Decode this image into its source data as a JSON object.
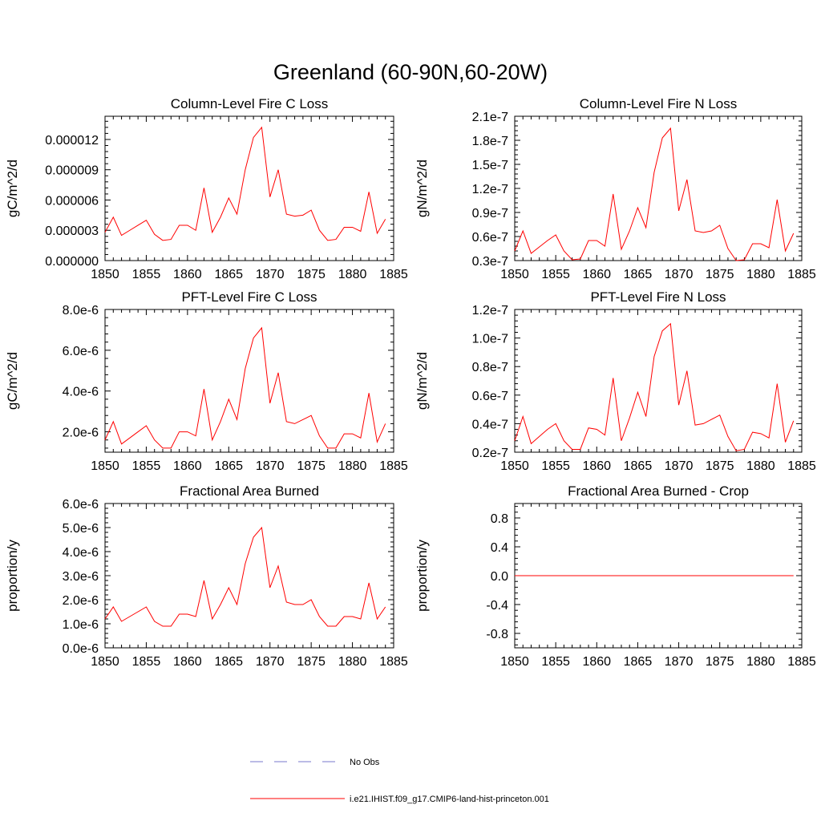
{
  "figure": {
    "title": "Greenland (60-90N,60-20W)",
    "series_color": "#ff0000",
    "obs_color": "#7777cc",
    "legend": [
      {
        "label": "No Obs",
        "style": "dashed"
      },
      {
        "label": "i.e21.IHIST.f09_g17.CMIP6-land-hist-princeton.001",
        "style": "solid"
      }
    ]
  },
  "chart_data": [
    {
      "type": "line",
      "title": "Column-Level Fire C Loss",
      "ylabel": "gC/m^2/d",
      "xlim": [
        1850,
        1885
      ],
      "ylim": [
        0,
        1.43e-05
      ],
      "xticks": [
        1850,
        1855,
        1860,
        1865,
        1870,
        1875,
        1880,
        1885
      ],
      "xtick_labels": [
        "1850",
        "1855",
        "1860",
        "1865",
        "1870",
        "1875",
        "1880",
        "1885"
      ],
      "yticks": [
        0,
        3e-06,
        6e-06,
        9e-06,
        1.2e-05
      ],
      "ytick_labels": [
        "0.000000",
        "0.000003",
        "0.000006",
        "0.000009",
        "0.000012"
      ],
      "x": [
        1850,
        1851,
        1852,
        1853,
        1854,
        1855,
        1856,
        1857,
        1858,
        1859,
        1860,
        1861,
        1862,
        1863,
        1864,
        1865,
        1866,
        1867,
        1868,
        1869,
        1870,
        1871,
        1872,
        1873,
        1874,
        1875,
        1876,
        1877,
        1878,
        1879,
        1880,
        1881,
        1882,
        1883,
        1884
      ],
      "series": [
        {
          "values": [
            2.8e-06,
            4.3e-06,
            2.5e-06,
            3e-06,
            3.5e-06,
            4e-06,
            2.6e-06,
            2e-06,
            2.1e-06,
            3.5e-06,
            3.5e-06,
            3e-06,
            7.2e-06,
            2.8e-06,
            4.3e-06,
            6.2e-06,
            4.6e-06,
            9e-06,
            1.22e-05,
            1.32e-05,
            6.3e-06,
            9e-06,
            4.6e-06,
            4.4e-06,
            4.5e-06,
            5e-06,
            3e-06,
            2e-06,
            2.1e-06,
            3.3e-06,
            3.3e-06,
            2.9e-06,
            6.8e-06,
            2.7e-06,
            4.1e-06
          ]
        }
      ]
    },
    {
      "type": "line",
      "title": "Column-Level Fire N Loss",
      "ylabel": "gN/m^2/d",
      "xlim": [
        1850,
        1885
      ],
      "ylim": [
        3e-08,
        2.1e-07
      ],
      "xticks": [
        1850,
        1855,
        1860,
        1865,
        1870,
        1875,
        1880,
        1885
      ],
      "xtick_labels": [
        "1850",
        "1855",
        "1860",
        "1865",
        "1870",
        "1875",
        "1880",
        "1885"
      ],
      "yticks": [
        3e-08,
        6e-08,
        9e-08,
        1.2e-07,
        1.5e-07,
        1.8e-07,
        2.1e-07
      ],
      "ytick_labels": [
        "0.3e-7",
        "0.6e-7",
        "0.9e-7",
        "1.2e-7",
        "1.5e-7",
        "1.8e-7",
        "2.1e-7"
      ],
      "x": [
        1850,
        1851,
        1852,
        1853,
        1854,
        1855,
        1856,
        1857,
        1858,
        1859,
        1860,
        1861,
        1862,
        1863,
        1864,
        1865,
        1866,
        1867,
        1868,
        1869,
        1870,
        1871,
        1872,
        1873,
        1874,
        1875,
        1876,
        1877,
        1878,
        1879,
        1880,
        1881,
        1882,
        1883,
        1884
      ],
      "series": [
        {
          "values": [
            4.2e-08,
            6.7e-08,
            3.9e-08,
            4.7e-08,
            5.5e-08,
            6.2e-08,
            4.2e-08,
            3.1e-08,
            3.2e-08,
            5.5e-08,
            5.5e-08,
            4.8e-08,
            1.13e-07,
            4.4e-08,
            6.7e-08,
            9.6e-08,
            7.1e-08,
            1.4e-07,
            1.83e-07,
            1.95e-07,
            9.2e-08,
            1.31e-07,
            6.7e-08,
            6.5e-08,
            6.7e-08,
            7.4e-08,
            4.5e-08,
            3e-08,
            3.1e-08,
            5.1e-08,
            5.1e-08,
            4.6e-08,
            1.06e-07,
            4.2e-08,
            6.4e-08
          ]
        }
      ]
    },
    {
      "type": "line",
      "title": "PFT-Level Fire C Loss",
      "ylabel": "gC/m^2/d",
      "xlim": [
        1850,
        1885
      ],
      "ylim": [
        1e-06,
        8e-06
      ],
      "xticks": [
        1850,
        1855,
        1860,
        1865,
        1870,
        1875,
        1880,
        1885
      ],
      "xtick_labels": [
        "1850",
        "1855",
        "1860",
        "1865",
        "1870",
        "1875",
        "1880",
        "1885"
      ],
      "yticks": [
        2e-06,
        4e-06,
        6e-06,
        8e-06
      ],
      "ytick_labels": [
        "2.0e-6",
        "4.0e-6",
        "6.0e-6",
        "8.0e-6"
      ],
      "x": [
        1850,
        1851,
        1852,
        1853,
        1854,
        1855,
        1856,
        1857,
        1858,
        1859,
        1860,
        1861,
        1862,
        1863,
        1864,
        1865,
        1866,
        1867,
        1868,
        1869,
        1870,
        1871,
        1872,
        1873,
        1874,
        1875,
        1876,
        1877,
        1878,
        1879,
        1880,
        1881,
        1882,
        1883,
        1884
      ],
      "series": [
        {
          "values": [
            1.6e-06,
            2.5e-06,
            1.4e-06,
            1.7e-06,
            2e-06,
            2.3e-06,
            1.6e-06,
            1.2e-06,
            1.2e-06,
            2e-06,
            2e-06,
            1.8e-06,
            4.1e-06,
            1.6e-06,
            2.5e-06,
            3.6e-06,
            2.6e-06,
            5.1e-06,
            6.6e-06,
            7.1e-06,
            3.4e-06,
            4.9e-06,
            2.5e-06,
            2.4e-06,
            2.6e-06,
            2.8e-06,
            1.8e-06,
            1.2e-06,
            1.2e-06,
            1.9e-06,
            1.9e-06,
            1.7e-06,
            3.9e-06,
            1.5e-06,
            2.4e-06
          ]
        }
      ]
    },
    {
      "type": "line",
      "title": "PFT-Level Fire N Loss",
      "ylabel": "gN/m^2/d",
      "xlim": [
        1850,
        1885
      ],
      "ylim": [
        2e-08,
        1.2e-07
      ],
      "xticks": [
        1850,
        1855,
        1860,
        1865,
        1870,
        1875,
        1880,
        1885
      ],
      "xtick_labels": [
        "1850",
        "1855",
        "1860",
        "1865",
        "1870",
        "1875",
        "1880",
        "1885"
      ],
      "yticks": [
        2e-08,
        4e-08,
        6e-08,
        8e-08,
        1e-07,
        1.2e-07
      ],
      "ytick_labels": [
        "0.2e-7",
        "0.4e-7",
        "0.6e-7",
        "0.8e-7",
        "1.0e-7",
        "1.2e-7"
      ],
      "x": [
        1850,
        1851,
        1852,
        1853,
        1854,
        1855,
        1856,
        1857,
        1858,
        1859,
        1860,
        1861,
        1862,
        1863,
        1864,
        1865,
        1866,
        1867,
        1868,
        1869,
        1870,
        1871,
        1872,
        1873,
        1874,
        1875,
        1876,
        1877,
        1878,
        1879,
        1880,
        1881,
        1882,
        1883,
        1884
      ],
      "series": [
        {
          "values": [
            2.8e-08,
            4.5e-08,
            2.6e-08,
            3.1e-08,
            3.6e-08,
            4e-08,
            2.8e-08,
            2.2e-08,
            2.2e-08,
            3.7e-08,
            3.6e-08,
            3.2e-08,
            7.2e-08,
            2.8e-08,
            4.4e-08,
            6.2e-08,
            4.5e-08,
            8.7e-08,
            1.05e-07,
            1.1e-07,
            5.3e-08,
            7.7e-08,
            3.9e-08,
            4e-08,
            4.3e-08,
            4.6e-08,
            3.1e-08,
            2.1e-08,
            2.2e-08,
            3.4e-08,
            3.3e-08,
            3e-08,
            6.8e-08,
            2.7e-08,
            4.2e-08
          ]
        }
      ]
    },
    {
      "type": "line",
      "title": "Fractional Area Burned",
      "ylabel": "proportion/y",
      "xlim": [
        1850,
        1885
      ],
      "ylim": [
        0,
        6e-06
      ],
      "xticks": [
        1850,
        1855,
        1860,
        1865,
        1870,
        1875,
        1880,
        1885
      ],
      "xtick_labels": [
        "1850",
        "1855",
        "1860",
        "1865",
        "1870",
        "1875",
        "1880",
        "1885"
      ],
      "yticks": [
        0,
        1e-06,
        2e-06,
        3e-06,
        4e-06,
        5e-06,
        6e-06
      ],
      "ytick_labels": [
        "0.0e-6",
        "1.0e-6",
        "2.0e-6",
        "3.0e-6",
        "4.0e-6",
        "5.0e-6",
        "6.0e-6"
      ],
      "x": [
        1850,
        1851,
        1852,
        1853,
        1854,
        1855,
        1856,
        1857,
        1858,
        1859,
        1860,
        1861,
        1862,
        1863,
        1864,
        1865,
        1866,
        1867,
        1868,
        1869,
        1870,
        1871,
        1872,
        1873,
        1874,
        1875,
        1876,
        1877,
        1878,
        1879,
        1880,
        1881,
        1882,
        1883,
        1884
      ],
      "series": [
        {
          "values": [
            1.2e-06,
            1.7e-06,
            1.1e-06,
            1.3e-06,
            1.5e-06,
            1.7e-06,
            1.1e-06,
            9e-07,
            9e-07,
            1.4e-06,
            1.4e-06,
            1.3e-06,
            2.8e-06,
            1.2e-06,
            1.8e-06,
            2.5e-06,
            1.8e-06,
            3.5e-06,
            4.6e-06,
            5e-06,
            2.5e-06,
            3.4e-06,
            1.9e-06,
            1.8e-06,
            1.8e-06,
            2e-06,
            1.3e-06,
            9e-07,
            9e-07,
            1.3e-06,
            1.3e-06,
            1.2e-06,
            2.7e-06,
            1.2e-06,
            1.7e-06
          ]
        }
      ]
    },
    {
      "type": "line",
      "title": "Fractional Area Burned - Crop",
      "ylabel": "proportion/y",
      "xlim": [
        1850,
        1885
      ],
      "ylim": [
        -1,
        1
      ],
      "xticks": [
        1850,
        1855,
        1860,
        1865,
        1870,
        1875,
        1880,
        1885
      ],
      "xtick_labels": [
        "1850",
        "1855",
        "1860",
        "1865",
        "1870",
        "1875",
        "1880",
        "1885"
      ],
      "yticks": [
        -0.8,
        -0.4,
        0,
        0.4,
        0.8
      ],
      "ytick_labels": [
        "-0.8",
        "-0.4",
        "0.0",
        "0.4",
        "0.8"
      ],
      "x": [
        1850,
        1851,
        1852,
        1853,
        1854,
        1855,
        1856,
        1857,
        1858,
        1859,
        1860,
        1861,
        1862,
        1863,
        1864,
        1865,
        1866,
        1867,
        1868,
        1869,
        1870,
        1871,
        1872,
        1873,
        1874,
        1875,
        1876,
        1877,
        1878,
        1879,
        1880,
        1881,
        1882,
        1883,
        1884
      ],
      "series": [
        {
          "values": [
            0,
            0,
            0,
            0,
            0,
            0,
            0,
            0,
            0,
            0,
            0,
            0,
            0,
            0,
            0,
            0,
            0,
            0,
            0,
            0,
            0,
            0,
            0,
            0,
            0,
            0,
            0,
            0,
            0,
            0,
            0,
            0,
            0,
            0,
            0
          ]
        }
      ]
    }
  ]
}
